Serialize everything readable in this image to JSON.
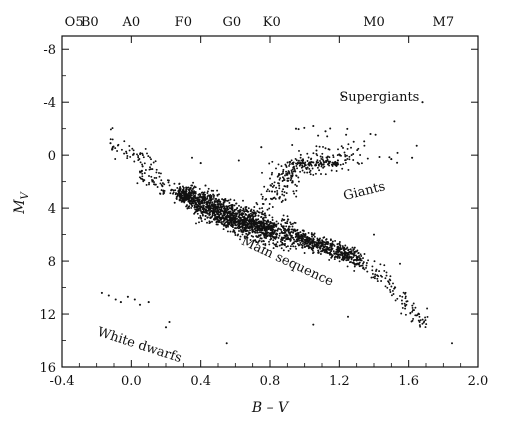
{
  "chart_data": {
    "type": "scatter",
    "title": "",
    "xlabel": "B – V",
    "ylabel": "M",
    "ylabel_subscript": "V",
    "xlim": [
      -0.4,
      2.0
    ],
    "ylim": [
      16,
      -9
    ],
    "y_inverted": true,
    "grid": false,
    "x_ticks": [
      -0.4,
      0.0,
      0.4,
      0.8,
      1.2,
      1.6,
      2.0
    ],
    "x_tick_labels": [
      "-0.4",
      "0.0",
      "0.4",
      "0.8",
      "1.2",
      "1.6",
      "2.0"
    ],
    "y_ticks": [
      -8,
      -4,
      0,
      4,
      8,
      12,
      16
    ],
    "y_tick_labels": [
      "-8",
      "-4",
      "0",
      "4",
      "8",
      "12",
      "16"
    ],
    "spectral_classes": [
      {
        "label": "O5",
        "bv": -0.33
      },
      {
        "label": "B0",
        "bv": -0.24
      },
      {
        "label": "A0",
        "bv": 0.0
      },
      {
        "label": "F0",
        "bv": 0.3
      },
      {
        "label": "G0",
        "bv": 0.58
      },
      {
        "label": "K0",
        "bv": 0.81
      },
      {
        "label": "M0",
        "bv": 1.4
      },
      {
        "label": "M7",
        "bv": 1.8
      }
    ],
    "annotations": [
      {
        "text": "Supergiants",
        "bv": 1.2,
        "mv": -4.1,
        "rotate": 0
      },
      {
        "text": "Giants",
        "bv": 1.23,
        "mv": 3.4,
        "rotate": -14
      },
      {
        "text": "Main sequence",
        "bv": 0.63,
        "mv": 6.7,
        "rotate": 25
      },
      {
        "text": "White dwarfs",
        "bv": -0.2,
        "mv": 13.6,
        "rotate": 18
      }
    ],
    "main_sequence": [
      [
        0.05,
        1.3
      ],
      [
        0.15,
        2.2
      ],
      [
        0.3,
        3.0
      ],
      [
        0.4,
        3.6
      ],
      [
        0.5,
        4.2
      ],
      [
        0.6,
        4.7
      ],
      [
        0.7,
        5.2
      ],
      [
        0.8,
        5.6
      ],
      [
        0.9,
        6.0
      ],
      [
        1.0,
        6.4
      ],
      [
        1.1,
        6.9
      ],
      [
        1.2,
        7.3
      ],
      [
        1.3,
        7.8
      ],
      [
        1.4,
        8.6
      ],
      [
        1.5,
        10.0
      ],
      [
        1.6,
        11.6
      ],
      [
        1.7,
        12.8
      ]
    ],
    "giant_branch": [
      [
        0.8,
        3.4
      ],
      [
        0.85,
        2.5
      ],
      [
        0.9,
        1.5
      ],
      [
        0.95,
        0.8
      ],
      [
        1.05,
        0.6
      ],
      [
        1.15,
        0.5
      ],
      [
        1.3,
        0.0
      ]
    ],
    "supergiants": [
      [
        -0.12,
        -0.9
      ],
      [
        0.4,
        0.6
      ],
      [
        0.75,
        -0.6
      ],
      [
        0.95,
        -2.0
      ],
      [
        1.05,
        -2.2
      ],
      [
        1.12,
        -1.8
      ],
      [
        1.22,
        -4.4
      ],
      [
        1.38,
        -1.6
      ],
      [
        1.5,
        0.3
      ],
      [
        1.62,
        0.2
      ],
      [
        1.68,
        -4.0
      ]
    ],
    "white_dwarfs": [
      [
        -0.17,
        10.4
      ],
      [
        -0.13,
        10.6
      ],
      [
        -0.09,
        10.9
      ],
      [
        -0.06,
        11.1
      ],
      [
        -0.02,
        10.7
      ],
      [
        0.02,
        10.9
      ],
      [
        0.05,
        11.3
      ],
      [
        0.1,
        11.1
      ],
      [
        0.2,
        13.0
      ],
      [
        0.22,
        12.6
      ]
    ],
    "scattered_stars": [
      [
        0.25,
        3.6
      ],
      [
        0.55,
        14.2
      ],
      [
        0.9,
        2.4
      ],
      [
        1.05,
        12.8
      ],
      [
        1.25,
        12.2
      ],
      [
        1.85,
        14.2
      ],
      [
        0.35,
        0.2
      ],
      [
        0.62,
        0.4
      ],
      [
        1.4,
        6.0
      ],
      [
        1.55,
        8.2
      ]
    ]
  }
}
